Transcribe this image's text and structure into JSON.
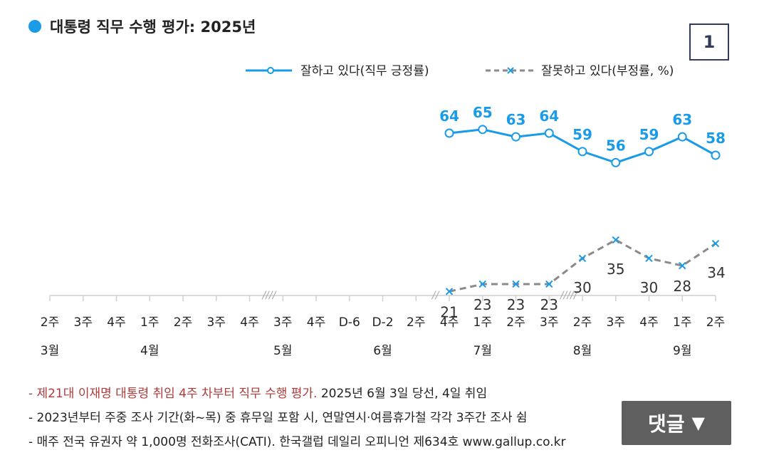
{
  "title": "대통령 직무 수행 평가: 2025년",
  "page_number": "1",
  "comment_button": {
    "label": "댓글",
    "icon": "triangle-down-icon"
  },
  "notes": [
    {
      "highlight": "- 제21대 이재명 대통령 취임 4주 차부터 직무 수행 평가.",
      "rest": " 2025년 6월 3일 당선, 4일 취임"
    },
    {
      "highlight": "",
      "rest": "- 2023년부터 주중 조사 기간(화~목) 중 휴무일 포함 시, 연말연시·여름휴가철 각각 3주간 조사 쉼"
    },
    {
      "highlight": "",
      "rest": "- 매주 전국 유권자 약 1,000명 전화조사(CATI). 한국갤럽 데일리 오피니언 제634호 www.gallup.co.kr"
    }
  ],
  "chart_data": {
    "type": "line",
    "title": "대통령 직무 수행 평가: 2025년",
    "xlabel": "",
    "ylabel": "",
    "legend_position": "top-right",
    "grid": false,
    "x": [
      "2주",
      "3주",
      "4주",
      "1주",
      "2주",
      "3주",
      "4주",
      "3주",
      "4주",
      "D-6",
      "D-2",
      "2주",
      "4주",
      "1주",
      "2주",
      "3주",
      "2주",
      "3주",
      "4주",
      "1주",
      "2주"
    ],
    "months": [
      {
        "label": "3월",
        "index": 0
      },
      {
        "label": "4월",
        "index": 3
      },
      {
        "label": "5월",
        "index": 7
      },
      {
        "label": "6월",
        "index": 10
      },
      {
        "label": "7월",
        "index": 13
      },
      {
        "label": "8월",
        "index": 16
      },
      {
        "label": "9월",
        "index": 19
      }
    ],
    "breaks": [
      {
        "after_index": 6,
        "label": "////"
      },
      {
        "after_index": 11,
        "label": "//"
      },
      {
        "after_index": 15,
        "label": "/////"
      }
    ],
    "series": [
      {
        "name": "잘하고 있다(직무 긍정률)",
        "color": "#1a9be8",
        "style": "solid",
        "values": [
          null,
          null,
          null,
          null,
          null,
          null,
          null,
          null,
          null,
          null,
          null,
          null,
          64,
          65,
          63,
          64,
          59,
          56,
          59,
          63,
          58
        ]
      },
      {
        "name": "잘못하고 있다(부정률, %)",
        "color": "#8a8a8a",
        "style": "dashed",
        "values": [
          null,
          null,
          null,
          null,
          null,
          null,
          null,
          null,
          null,
          null,
          null,
          null,
          21,
          23,
          23,
          23,
          30,
          35,
          30,
          28,
          34
        ]
      }
    ]
  }
}
